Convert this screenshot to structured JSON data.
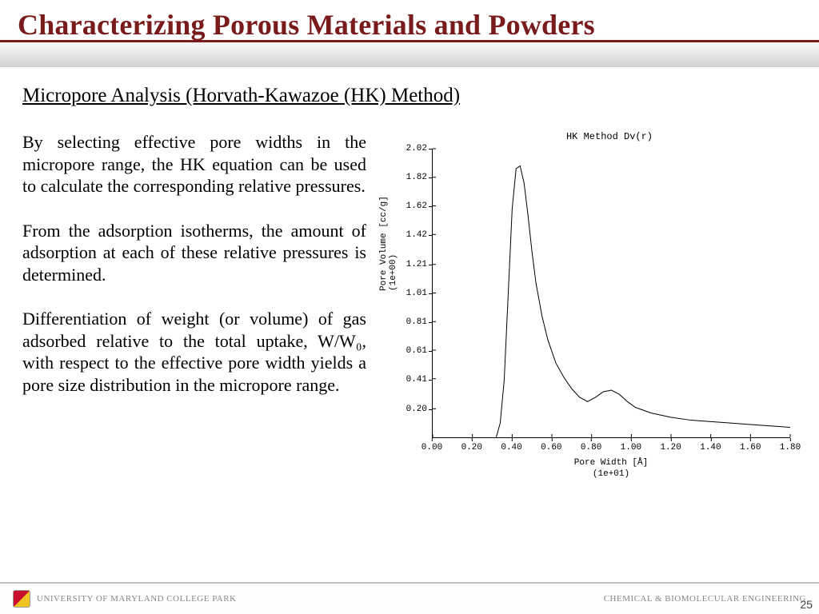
{
  "title": "Characterizing Porous Materials and Powders",
  "title_color": "#7a1b1b",
  "subtitle": "Micropore Analysis (Horvath-Kawazoe (HK) Method)",
  "paragraphs": [
    "By selecting effective pore widths in the micropore range, the HK equation can be used to calculate the corresponding relative pressures.",
    "From the adsorption isotherms, the amount of adsorption at each of these relative pressures is determined.",
    "Differentiation of weight (or volume) of gas adsorbed relative to the total uptake, W/W₀, with respect to the effective pore width yields a pore size distribution in the micropore range."
  ],
  "body_fontsize": 22,
  "chart": {
    "type": "line",
    "title": "HK Method Dv(r)",
    "xlabel_line1": "Pore Width [Å]",
    "xlabel_line2": "(1e+01)",
    "ylabel_line1": "Pore Volume [cc/g]",
    "ylabel_line2": "(1e+00)",
    "xlim": [
      0.0,
      1.8
    ],
    "ylim": [
      0.0,
      2.02
    ],
    "xticks": [
      0.0,
      0.2,
      0.4,
      0.6,
      0.8,
      1.0,
      1.2,
      1.4,
      1.6,
      1.8
    ],
    "yticks": [
      0.2,
      0.41,
      0.61,
      0.81,
      1.01,
      1.21,
      1.42,
      1.62,
      1.82,
      2.02
    ],
    "line_color": "#000000",
    "line_width": 1,
    "background_color": "#ffffff",
    "font_family": "Courier New",
    "tick_fontsize": 11,
    "data": [
      [
        0.32,
        0.0
      ],
      [
        0.34,
        0.1
      ],
      [
        0.36,
        0.4
      ],
      [
        0.38,
        1.0
      ],
      [
        0.4,
        1.6
      ],
      [
        0.42,
        1.88
      ],
      [
        0.44,
        1.9
      ],
      [
        0.46,
        1.78
      ],
      [
        0.48,
        1.55
      ],
      [
        0.5,
        1.3
      ],
      [
        0.52,
        1.08
      ],
      [
        0.55,
        0.85
      ],
      [
        0.58,
        0.68
      ],
      [
        0.62,
        0.52
      ],
      [
        0.66,
        0.42
      ],
      [
        0.7,
        0.34
      ],
      [
        0.74,
        0.28
      ],
      [
        0.78,
        0.25
      ],
      [
        0.82,
        0.28
      ],
      [
        0.86,
        0.32
      ],
      [
        0.9,
        0.33
      ],
      [
        0.94,
        0.3
      ],
      [
        0.98,
        0.25
      ],
      [
        1.02,
        0.21
      ],
      [
        1.1,
        0.17
      ],
      [
        1.2,
        0.14
      ],
      [
        1.3,
        0.12
      ],
      [
        1.4,
        0.11
      ],
      [
        1.5,
        0.1
      ],
      [
        1.6,
        0.09
      ],
      [
        1.7,
        0.08
      ],
      [
        1.8,
        0.07
      ]
    ]
  },
  "footer": {
    "left": "UNIVERSITY OF MARYLAND COLLEGE PARK",
    "right": "CHEMICAL & BIOMOLECULAR ENGINEERING",
    "page": "25"
  }
}
